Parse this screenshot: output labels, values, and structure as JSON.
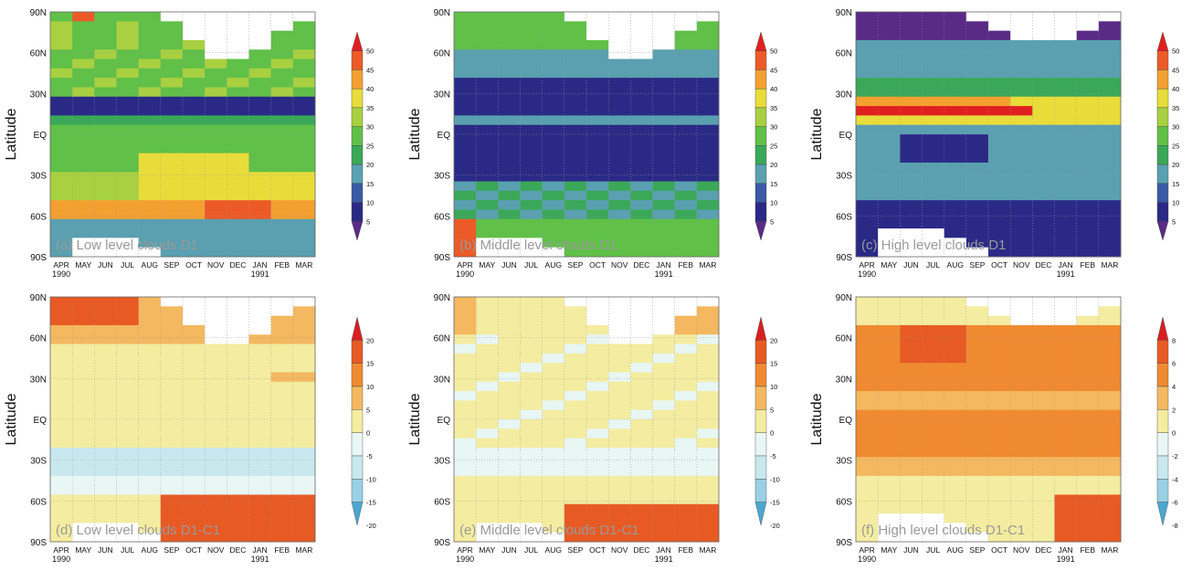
{
  "colors": {
    "abs_scale": [
      "#5a2a86",
      "#2a2a86",
      "#3a5aa6",
      "#5aa0b0",
      "#3aa858",
      "#60c048",
      "#a8d040",
      "#e8dc3a",
      "#f4a030",
      "#ec5a28",
      "#e02020"
    ],
    "diff_scale": [
      "#4aa8d0",
      "#9ad0e4",
      "#c8e8ee",
      "#e8f6f4",
      "#f4eca0",
      "#f4b860",
      "#f08a30",
      "#e85a24",
      "#d82020"
    ],
    "missing": "#ffffff"
  },
  "chart_data": [
    {
      "type": "heatmap",
      "panel_label": "(a) Low level clouds D1",
      "ylabel": "Latitude",
      "y_ticks": [
        "90N",
        "60N",
        "30N",
        "EQ",
        "30S",
        "60S",
        "90S"
      ],
      "x_ticks": [
        "APR",
        "MAY",
        "JUN",
        "JUL",
        "AUG",
        "SEP",
        "OCT",
        "NOV",
        "DEC",
        "JAN",
        "FEB",
        "MAR"
      ],
      "x_year_labels": [
        {
          "at": "APR",
          "text": "1990"
        },
        {
          "at": "JAN",
          "text": "1991"
        }
      ],
      "colorbar_ticks": [
        "50",
        "45",
        "40",
        "35",
        "30",
        "25",
        "20",
        "15",
        "10",
        "5"
      ],
      "ylim": [
        -90,
        90
      ],
      "field": "low_abs"
    },
    {
      "type": "heatmap",
      "panel_label": "(b) Middle level clouds D1",
      "ylabel": "Latitude",
      "y_ticks": [
        "90N",
        "60N",
        "30N",
        "EQ",
        "30S",
        "60S",
        "90S"
      ],
      "x_ticks": [
        "APR",
        "MAY",
        "JUN",
        "JUL",
        "AUG",
        "SEP",
        "OCT",
        "NOV",
        "DEC",
        "JAN",
        "FEB",
        "MAR"
      ],
      "x_year_labels": [
        {
          "at": "APR",
          "text": "1990"
        },
        {
          "at": "JAN",
          "text": "1991"
        }
      ],
      "colorbar_ticks": [
        "50",
        "45",
        "40",
        "35",
        "30",
        "25",
        "20",
        "15",
        "10",
        "5"
      ],
      "ylim": [
        -90,
        90
      ],
      "field": "mid_abs"
    },
    {
      "type": "heatmap",
      "panel_label": "(c) High level clouds D1",
      "ylabel": "Latitude",
      "y_ticks": [
        "90N",
        "60N",
        "30N",
        "EQ",
        "30S",
        "60S",
        "90S"
      ],
      "x_ticks": [
        "APR",
        "MAY",
        "JUN",
        "JUL",
        "AUG",
        "SEP",
        "OCT",
        "NOV",
        "DEC",
        "JAN",
        "FEB",
        "MAR"
      ],
      "x_year_labels": [
        {
          "at": "APR",
          "text": "1990"
        },
        {
          "at": "JAN",
          "text": "1991"
        }
      ],
      "colorbar_ticks": [
        "50",
        "45",
        "40",
        "35",
        "30",
        "25",
        "20",
        "15",
        "10",
        "5"
      ],
      "ylim": [
        -90,
        90
      ],
      "field": "high_abs"
    },
    {
      "type": "heatmap",
      "panel_label": "(d) Low level clouds D1-C1",
      "ylabel": "Latitude",
      "y_ticks": [
        "90N",
        "60N",
        "30N",
        "EQ",
        "30S",
        "60S",
        "90S"
      ],
      "x_ticks": [
        "APR",
        "MAY",
        "JUN",
        "JUL",
        "AUG",
        "SEP",
        "OCT",
        "NOV",
        "DEC",
        "JAN",
        "FEB",
        "MAR"
      ],
      "x_year_labels": [
        {
          "at": "APR",
          "text": "1990"
        },
        {
          "at": "JAN",
          "text": "1991"
        }
      ],
      "colorbar_ticks": [
        "20",
        "15",
        "10",
        "5",
        "0",
        "-5",
        "-10",
        "-15",
        "-20"
      ],
      "ylim": [
        -90,
        90
      ],
      "field": "low_diff"
    },
    {
      "type": "heatmap",
      "panel_label": "(e) Middle level clouds D1-C1",
      "ylabel": "Latitude",
      "y_ticks": [
        "90N",
        "60N",
        "30N",
        "EQ",
        "30S",
        "60S",
        "90S"
      ],
      "x_ticks": [
        "APR",
        "MAY",
        "JUN",
        "JUL",
        "AUG",
        "SEP",
        "OCT",
        "NOV",
        "DEC",
        "JAN",
        "FEB",
        "MAR"
      ],
      "x_year_labels": [
        {
          "at": "APR",
          "text": "1990"
        },
        {
          "at": "JAN",
          "text": "1991"
        }
      ],
      "colorbar_ticks": [
        "20",
        "15",
        "10",
        "5",
        "0",
        "-5",
        "-10",
        "-15",
        "-20"
      ],
      "ylim": [
        -90,
        90
      ],
      "field": "mid_diff"
    },
    {
      "type": "heatmap",
      "panel_label": "(f) High level clouds D1-C1",
      "ylabel": "Latitude",
      "y_ticks": [
        "90N",
        "60N",
        "30N",
        "EQ",
        "30S",
        "60S",
        "90S"
      ],
      "x_ticks": [
        "APR",
        "MAY",
        "JUN",
        "JUL",
        "AUG",
        "SEP",
        "OCT",
        "NOV",
        "DEC",
        "JAN",
        "FEB",
        "MAR"
      ],
      "x_year_labels": [
        {
          "at": "APR",
          "text": "1990"
        },
        {
          "at": "JAN",
          "text": "1991"
        }
      ],
      "colorbar_ticks": [
        "8",
        "6",
        "4",
        "2",
        "0",
        "-2",
        "-4",
        "-6",
        "-8"
      ],
      "ylim": [
        -90,
        90
      ],
      "field": "high_diff"
    }
  ]
}
